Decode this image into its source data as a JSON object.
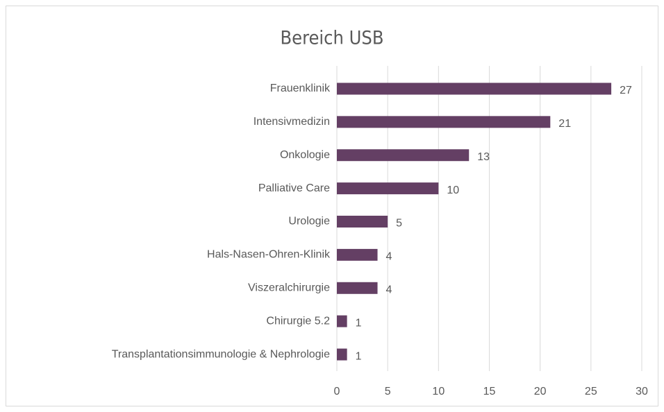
{
  "chart_data": {
    "type": "bar",
    "orientation": "horizontal",
    "title": "Bereich USB",
    "categories": [
      "Frauenklinik",
      "Intensivmedizin",
      "Onkologie",
      "Palliative Care",
      "Urologie",
      "Hals-Nasen-Ohren-Klinik",
      "Viszeralchirurgie",
      "Chirurgie 5.2",
      "Transplantationsimmunologie & Nephrologie"
    ],
    "values": [
      27,
      21,
      13,
      10,
      5,
      4,
      4,
      1,
      1
    ],
    "color": "#643f64",
    "xlim": [
      0,
      30
    ],
    "xticks": [
      0,
      5,
      10,
      15,
      20,
      25,
      30
    ],
    "grid": true
  }
}
